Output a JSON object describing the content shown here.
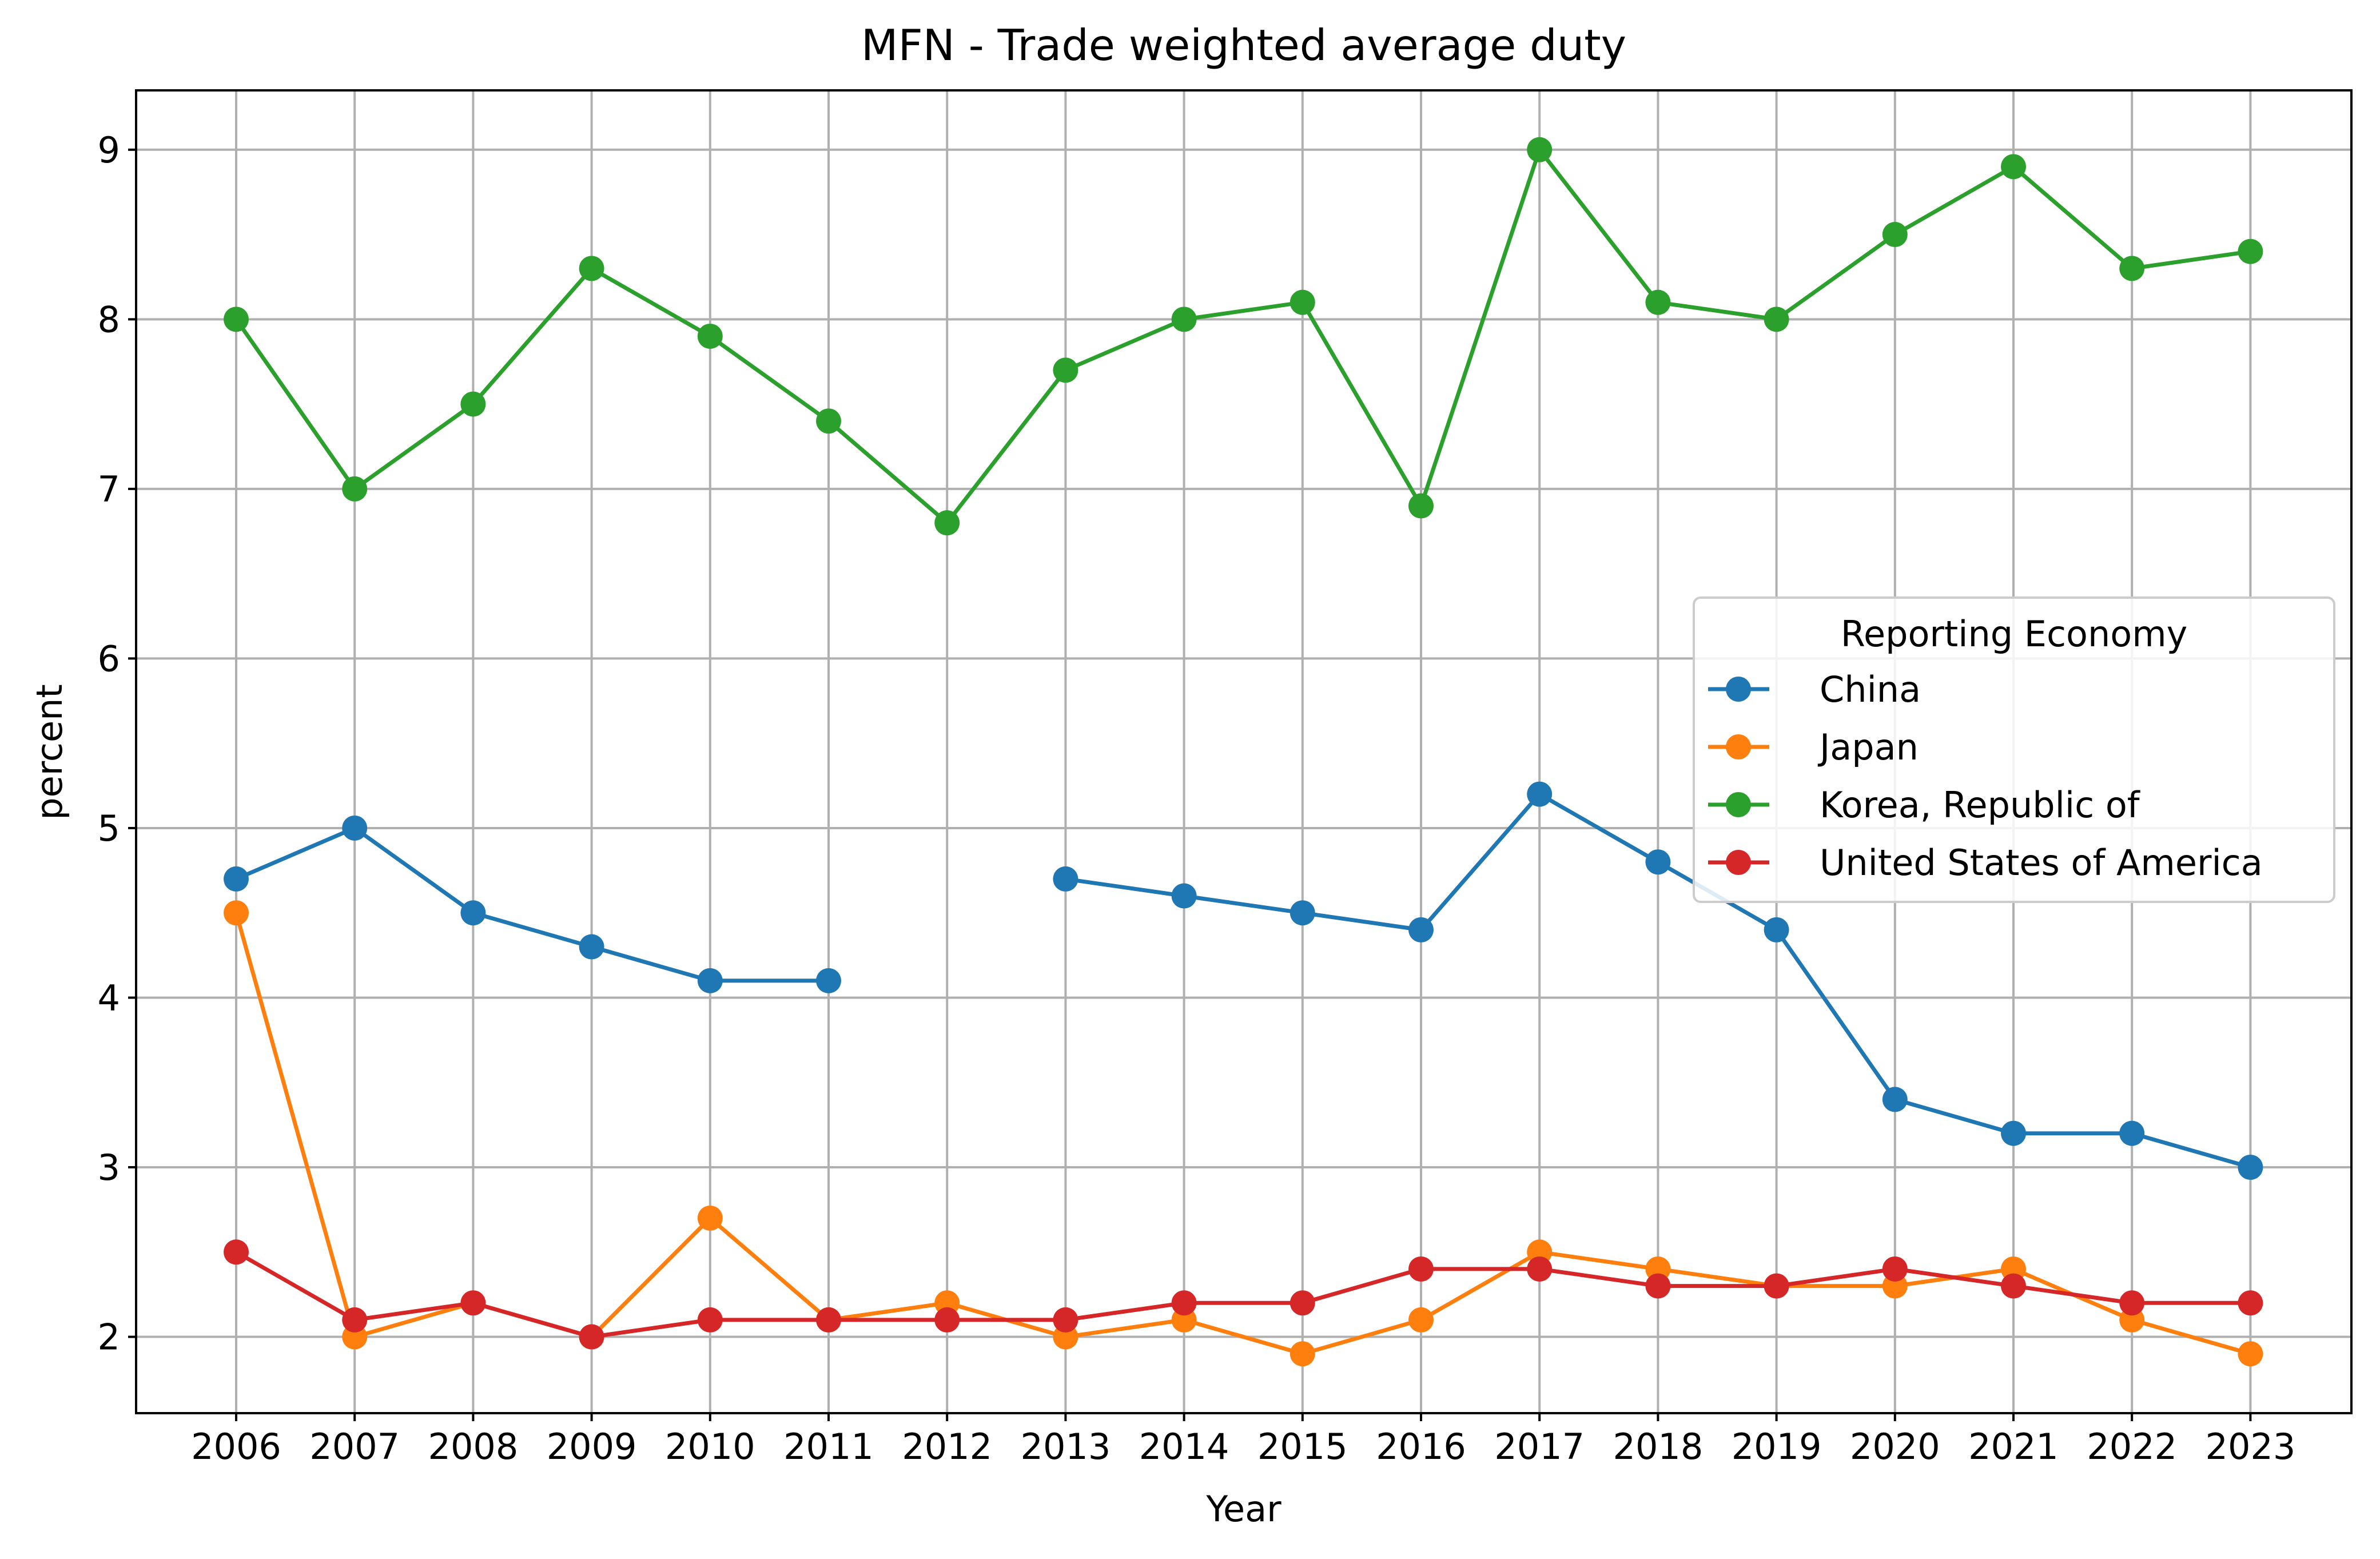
{
  "chart_data": {
    "type": "line",
    "title": "MFN - Trade weighted average duty",
    "xlabel": "Year",
    "ylabel": "percent",
    "categories": [
      "2006",
      "2007",
      "2008",
      "2009",
      "2010",
      "2011",
      "2012",
      "2013",
      "2014",
      "2015",
      "2016",
      "2017",
      "2018",
      "2019",
      "2020",
      "2021",
      "2022",
      "2023"
    ],
    "yticks": [
      "2",
      "3",
      "4",
      "5",
      "6",
      "7",
      "8",
      "9"
    ],
    "ylim": [
      1.55,
      9.35
    ],
    "grid": true,
    "legend": {
      "title": "Reporting Economy",
      "placement": "center-right"
    },
    "series": [
      {
        "name": "China",
        "color": "#1f77b4",
        "values": [
          4.7,
          5.0,
          4.5,
          4.3,
          4.1,
          4.1,
          null,
          4.7,
          4.6,
          4.5,
          4.4,
          5.2,
          4.8,
          4.4,
          3.4,
          3.2,
          3.2,
          3.0
        ]
      },
      {
        "name": "Japan",
        "color": "#ff7f0e",
        "values": [
          4.5,
          2.0,
          2.2,
          2.0,
          2.7,
          2.1,
          2.2,
          2.0,
          2.1,
          1.9,
          2.1,
          2.5,
          2.4,
          2.3,
          2.3,
          2.4,
          2.1,
          1.9
        ]
      },
      {
        "name": "Korea, Republic of",
        "color": "#2ca02c",
        "values": [
          8.0,
          7.0,
          7.5,
          8.3,
          7.9,
          7.4,
          6.8,
          7.7,
          8.0,
          8.1,
          6.9,
          9.0,
          8.1,
          8.0,
          8.5,
          8.9,
          8.3,
          8.4
        ]
      },
      {
        "name": "United States of America",
        "color": "#d62728",
        "values": [
          2.5,
          2.1,
          2.2,
          2.0,
          2.1,
          2.1,
          2.1,
          2.1,
          2.2,
          2.2,
          2.4,
          2.4,
          2.3,
          2.3,
          2.4,
          2.3,
          2.2,
          2.2
        ]
      }
    ]
  }
}
